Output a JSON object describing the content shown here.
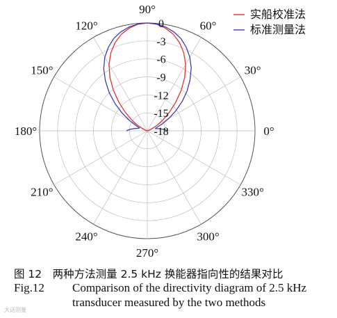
{
  "chart_data": {
    "type": "polar-line",
    "angle_ticks": [
      "0°",
      "30°",
      "60°",
      "90°",
      "120°",
      "150°",
      "180°",
      "210°",
      "240°",
      "270°",
      "300°",
      "330°"
    ],
    "radial_ticks": [
      "0",
      "-3",
      "-6",
      "-9",
      "-12",
      "-15",
      "-18"
    ],
    "rlim": [
      -18,
      0
    ],
    "unit": "dB",
    "grid": true,
    "legend_position": "top-right",
    "series": [
      {
        "name": "实船校准法",
        "color": "#e03131",
        "points": [
          [
            10,
            -18
          ],
          [
            15,
            -17.9
          ],
          [
            20,
            -17.6
          ],
          [
            25,
            -17.0
          ],
          [
            30,
            -16.0
          ],
          [
            35,
            -14.8
          ],
          [
            40,
            -13.2
          ],
          [
            45,
            -11.3
          ],
          [
            50,
            -9.2
          ],
          [
            55,
            -7.1
          ],
          [
            60,
            -5.2
          ],
          [
            65,
            -3.6
          ],
          [
            70,
            -2.3
          ],
          [
            75,
            -1.3
          ],
          [
            80,
            -0.6
          ],
          [
            85,
            -0.15
          ],
          [
            90,
            0
          ],
          [
            95,
            -0.15
          ],
          [
            100,
            -0.6
          ],
          [
            105,
            -1.3
          ],
          [
            110,
            -2.3
          ],
          [
            115,
            -3.6
          ],
          [
            120,
            -5.2
          ],
          [
            125,
            -7.1
          ],
          [
            130,
            -9.2
          ],
          [
            135,
            -11.3
          ],
          [
            140,
            -13.2
          ],
          [
            145,
            -14.8
          ],
          [
            150,
            -16.0
          ],
          [
            155,
            -17.0
          ],
          [
            160,
            -17.6
          ],
          [
            165,
            -17.9
          ],
          [
            170,
            -18
          ]
        ]
      },
      {
        "name": "标准测量法",
        "color": "#3b3bb0",
        "points": [
          [
            0,
            -14.5
          ],
          [
            5,
            -15.2
          ],
          [
            10,
            -16.0
          ],
          [
            15,
            -16.6
          ],
          [
            20,
            -16.3
          ],
          [
            25,
            -15.2
          ],
          [
            30,
            -13.8
          ],
          [
            35,
            -12.2
          ],
          [
            40,
            -10.4
          ],
          [
            45,
            -8.6
          ],
          [
            50,
            -6.9
          ],
          [
            55,
            -5.2
          ],
          [
            60,
            -3.8
          ],
          [
            65,
            -2.6
          ],
          [
            70,
            -1.6
          ],
          [
            75,
            -0.9
          ],
          [
            80,
            -0.4
          ],
          [
            85,
            -0.1
          ],
          [
            90,
            0
          ],
          [
            95,
            -0.1
          ],
          [
            100,
            -0.4
          ],
          [
            105,
            -0.9
          ],
          [
            110,
            -1.6
          ],
          [
            115,
            -2.6
          ],
          [
            120,
            -3.8
          ],
          [
            125,
            -5.3
          ],
          [
            130,
            -7.1
          ],
          [
            135,
            -9.0
          ],
          [
            140,
            -11.0
          ],
          [
            145,
            -12.9
          ],
          [
            150,
            -14.6
          ],
          [
            155,
            -15.9
          ],
          [
            160,
            -16.6
          ],
          [
            165,
            -16.4
          ],
          [
            170,
            -15.8
          ],
          [
            175,
            -15.1
          ],
          [
            180,
            -14.5
          ]
        ]
      }
    ]
  },
  "caption": {
    "zh": "图 12　两种方法测量 2.5 kHz 换能器指向性的结果对比",
    "en_label": "Fig.12",
    "en_line1": "Comparison of the directivity diagram of 2.5 kHz",
    "en_line2": "transducer measured by the two methods"
  },
  "watermark": "大话测量"
}
